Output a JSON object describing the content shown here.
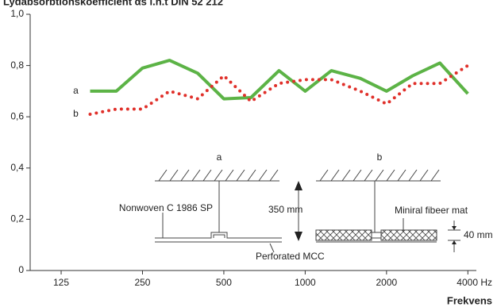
{
  "chart_data": {
    "type": "line",
    "title": "Lydabsorbtionskoefficient αs i.h.t DIN 52 212",
    "x_label": "Frekvens",
    "xscale": "log",
    "x": [
      160,
      200,
      250,
      315,
      400,
      500,
      630,
      800,
      1000,
      1250,
      1600,
      2000,
      2500,
      3150,
      4000
    ],
    "series": [
      {
        "name": "a",
        "color": "#5cb346",
        "style": "solid",
        "values": [
          0.7,
          0.7,
          0.79,
          0.82,
          0.77,
          0.67,
          0.675,
          0.78,
          0.7,
          0.78,
          0.75,
          0.7,
          0.76,
          0.81,
          0.69
        ]
      },
      {
        "name": "b",
        "color": "#e0302a",
        "style": "dotted",
        "values": [
          0.61,
          0.63,
          0.63,
          0.7,
          0.67,
          0.76,
          0.66,
          0.73,
          0.745,
          0.745,
          0.7,
          0.65,
          0.73,
          0.73,
          0.8
        ]
      }
    ],
    "xlim": [
      96,
      4300
    ],
    "xticks": [
      125,
      250,
      500,
      1000,
      2000,
      {
        "value": 4000,
        "label": "4000 Hz"
      }
    ],
    "ylim": [
      0,
      1
    ],
    "yticks": [
      0,
      {
        "value": 0.2,
        "label": "0,2"
      },
      {
        "value": 0.4,
        "label": "0,4"
      },
      {
        "value": 0.6,
        "label": "0,6"
      },
      {
        "value": 0.8,
        "label": "0,8"
      },
      {
        "value": 1,
        "label": "1,0"
      }
    ],
    "annotations": [
      "a",
      "b",
      "Nonwoven C 1986 SP",
      "350 mm",
      "Miniral fibeer mat",
      "40 mm",
      "Perforated MCC"
    ]
  }
}
